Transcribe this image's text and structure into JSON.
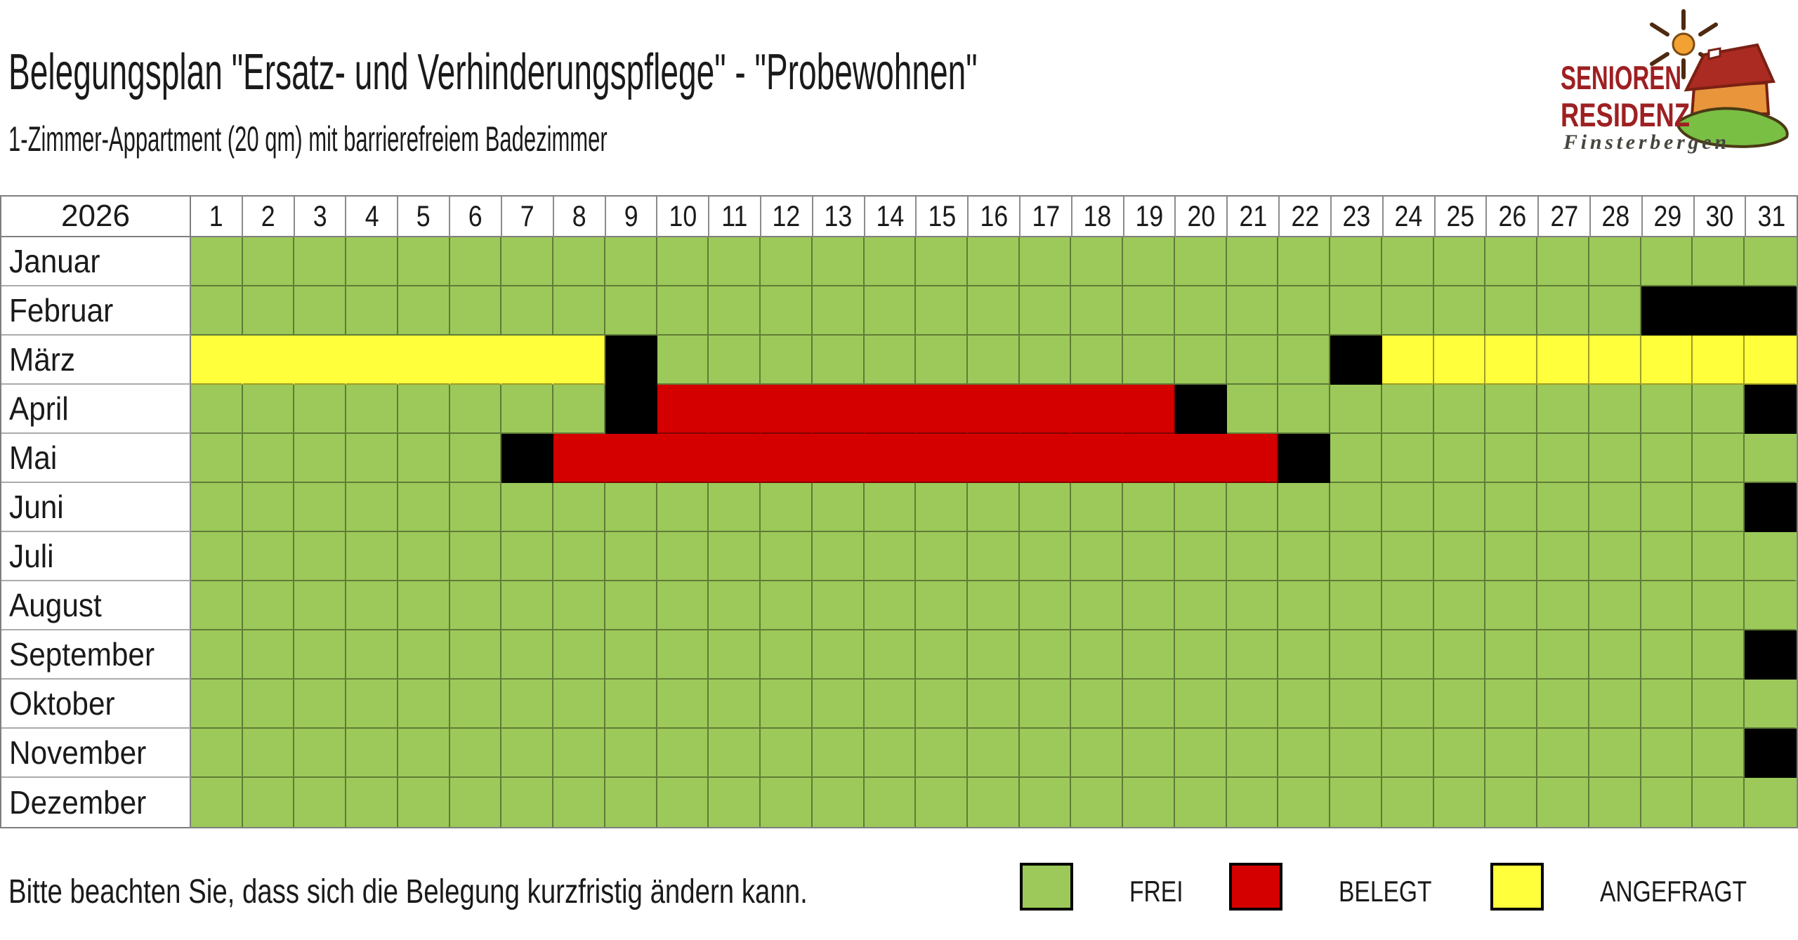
{
  "page": {
    "title": "Belegungsplan \"Ersatz- und Verhinderungspflege\" - \"Probewohnen\"",
    "subtitle": "1-Zimmer-Appartment (20 qm) mit barrierefreiem Badezimmer",
    "note": "Bitte beachten Sie, dass sich die Belegung kurzfristig ändern kann."
  },
  "logo": {
    "name_line1": "SENIOREN",
    "name_line2": "RESIDENZ",
    "place": "Finsterbergen",
    "brand_red": "#9e2022",
    "roof_red": "#ab2a21",
    "wall_orange": "#e8953c",
    "hill_green": "#79bf44",
    "sun_orange": "#f2a133"
  },
  "legend": {
    "items": [
      {
        "label": "FREI",
        "state": "f"
      },
      {
        "label": "BELEGT",
        "state": "b"
      },
      {
        "label": "ANGEFRAGT",
        "state": "a"
      }
    ]
  },
  "chart_data": {
    "type": "heatmap",
    "title": "Belegungsplan \"Ersatz- und Verhinderungspflege\" - \"Probewohnen\"",
    "year": "2026",
    "day_labels": [
      "1",
      "2",
      "3",
      "4",
      "5",
      "6",
      "7",
      "8",
      "9",
      "10",
      "11",
      "12",
      "13",
      "14",
      "15",
      "16",
      "17",
      "18",
      "19",
      "20",
      "21",
      "22",
      "23",
      "24",
      "25",
      "26",
      "27",
      "28",
      "29",
      "30",
      "31"
    ],
    "states": {
      "f": "FREI",
      "b": "BELEGT",
      "a": "ANGEFRAGT",
      "x": "schwarz (kein Tag / Wechseltag)"
    },
    "colors": {
      "f": "#9cc959",
      "b": "#d40000",
      "a": "#ffff3c",
      "x": "#000000"
    },
    "months": [
      {
        "name": "Januar",
        "segments": [
          [
            "f",
            31,
            false
          ]
        ]
      },
      {
        "name": "Februar",
        "segments": [
          [
            "f",
            28,
            false
          ],
          [
            "x",
            3,
            true
          ]
        ]
      },
      {
        "name": "März",
        "segments": [
          [
            "a",
            8,
            true
          ],
          [
            "x",
            1,
            false
          ],
          [
            "f",
            13,
            false
          ],
          [
            "x",
            1,
            false
          ],
          [
            "a",
            8,
            false
          ]
        ]
      },
      {
        "name": "April",
        "segments": [
          [
            "f",
            8,
            false
          ],
          [
            "x",
            1,
            false
          ],
          [
            "b",
            10,
            true
          ],
          [
            "x",
            1,
            false
          ],
          [
            "f",
            10,
            false
          ],
          [
            "x",
            1,
            false
          ]
        ]
      },
      {
        "name": "Mai",
        "segments": [
          [
            "f",
            6,
            false
          ],
          [
            "x",
            1,
            false
          ],
          [
            "b",
            14,
            true
          ],
          [
            "x",
            1,
            false
          ],
          [
            "f",
            9,
            false
          ]
        ]
      },
      {
        "name": "Juni",
        "segments": [
          [
            "f",
            30,
            false
          ],
          [
            "x",
            1,
            false
          ]
        ]
      },
      {
        "name": "Juli",
        "segments": [
          [
            "f",
            31,
            false
          ]
        ]
      },
      {
        "name": "August",
        "segments": [
          [
            "f",
            31,
            false
          ]
        ]
      },
      {
        "name": "September",
        "segments": [
          [
            "f",
            30,
            false
          ],
          [
            "x",
            1,
            false
          ]
        ]
      },
      {
        "name": "Oktober",
        "segments": [
          [
            "f",
            31,
            false
          ]
        ]
      },
      {
        "name": "November",
        "segments": [
          [
            "f",
            30,
            false
          ],
          [
            "x",
            1,
            false
          ]
        ]
      },
      {
        "name": "Dezember",
        "segments": [
          [
            "f",
            31,
            false
          ]
        ]
      }
    ]
  }
}
